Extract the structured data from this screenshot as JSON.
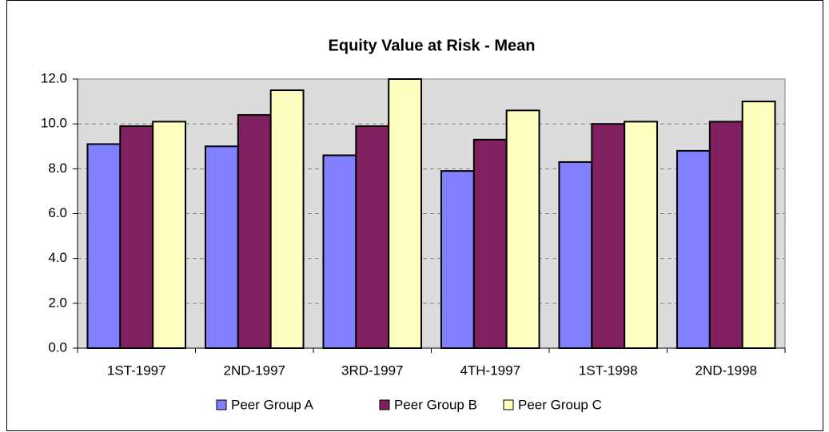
{
  "chart_data": {
    "type": "bar",
    "title": "Equity Value at Risk - Mean",
    "categories": [
      "1ST-1997",
      "2ND-1997",
      "3RD-1997",
      "4TH-1997",
      "1ST-1998",
      "2ND-1998"
    ],
    "series": [
      {
        "name": "Peer Group A",
        "color": "#8080ff",
        "values": [
          9.1,
          9.0,
          8.6,
          7.9,
          8.3,
          8.8
        ]
      },
      {
        "name": "Peer Group B",
        "color": "#802060",
        "values": [
          9.9,
          10.4,
          9.9,
          9.3,
          10.0,
          10.1
        ]
      },
      {
        "name": "Peer Group C",
        "color": "#ffffc0",
        "values": [
          10.1,
          11.5,
          12.0,
          10.6,
          10.1,
          11.0
        ]
      }
    ],
    "ylim": [
      0,
      12
    ],
    "yticks": [
      {
        "value": 0,
        "label": "0.0"
      },
      {
        "value": 2,
        "label": "2.0"
      },
      {
        "value": 4,
        "label": "4.0"
      },
      {
        "value": 6,
        "label": "6.0"
      },
      {
        "value": 8,
        "label": "8.0"
      },
      {
        "value": 10,
        "label": "10.0"
      },
      {
        "value": 12,
        "label": "12.0"
      }
    ],
    "grid": true,
    "legend": "bottom"
  }
}
